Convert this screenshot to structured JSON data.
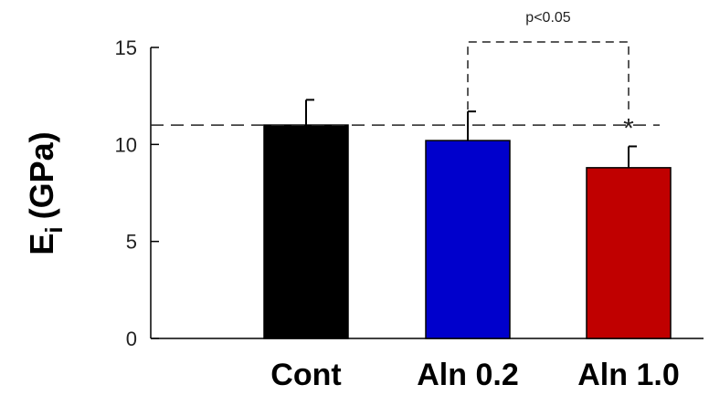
{
  "chart_data": {
    "type": "bar",
    "categories": [
      "Cont",
      "Aln 0.2",
      "Aln 1.0"
    ],
    "values": [
      11.0,
      10.2,
      8.8
    ],
    "errors": [
      1.3,
      1.5,
      1.1
    ],
    "colors": [
      "#000000",
      "#0000cc",
      "#c00000"
    ],
    "ylabel_main": "E",
    "ylabel_sub": "i",
    "ylabel_unit": "(GPa)",
    "ylim": [
      0,
      15
    ],
    "yticks": [
      0,
      5,
      10,
      15
    ],
    "reference_line": 11.0,
    "significance": {
      "label": "p<0.05",
      "between": [
        "Aln 0.2",
        "Aln 1.0"
      ],
      "marker": "*"
    },
    "grid": false
  }
}
